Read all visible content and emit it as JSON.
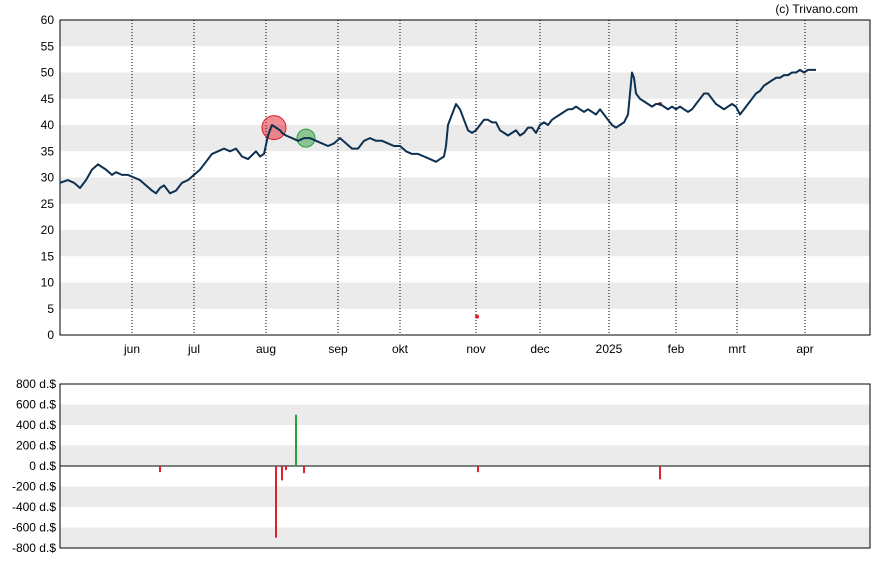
{
  "copyright": "(c) Trivano.com",
  "colors": {
    "price_line": "#0d3050",
    "buy": "#2e9e3e",
    "sell": "#e0202c",
    "band": "#ebebeb",
    "axis": "#000000"
  },
  "chart_data": [
    {
      "type": "line",
      "ylim": [
        0,
        60
      ],
      "yticks": [
        "0",
        "5",
        "10",
        "15",
        "20",
        "25",
        "30",
        "35",
        "40",
        "45",
        "50",
        "55",
        "60"
      ],
      "xticks": [
        "jun",
        "jul",
        "aug",
        "sep",
        "okt",
        "nov",
        "dec",
        "2025",
        "feb",
        "mrt",
        "apr"
      ],
      "grid": "horizontal bands, vertical dotted month lines",
      "series": [
        {
          "values": [
            [
              0,
              29
            ],
            [
              8,
              29.5
            ],
            [
              14,
              29
            ],
            [
              20,
              28
            ],
            [
              26,
              29.5
            ],
            [
              32,
              31.5
            ],
            [
              38,
              32.5
            ],
            [
              46,
              31.5
            ],
            [
              52,
              30.5
            ],
            [
              56,
              31
            ],
            [
              62,
              30.5
            ],
            [
              68,
              30.5
            ],
            [
              74,
              30
            ],
            [
              80,
              29.5
            ],
            [
              86,
              28.5
            ],
            [
              92,
              27.5
            ],
            [
              96,
              27
            ],
            [
              100,
              28
            ],
            [
              104,
              28.5
            ],
            [
              110,
              27
            ],
            [
              116,
              27.5
            ],
            [
              122,
              29
            ],
            [
              128,
              29.5
            ],
            [
              134,
              30.5
            ],
            [
              140,
              31.5
            ],
            [
              146,
              33
            ],
            [
              152,
              34.5
            ],
            [
              158,
              35
            ],
            [
              164,
              35.5
            ],
            [
              170,
              35
            ],
            [
              176,
              35.5
            ],
            [
              182,
              34
            ],
            [
              188,
              33.5
            ],
            [
              196,
              35
            ],
            [
              200,
              34
            ],
            [
              204,
              34.5
            ],
            [
              208,
              38
            ],
            [
              212,
              40
            ],
            [
              216,
              39.5
            ],
            [
              220,
              39
            ],
            [
              222,
              38.5
            ],
            [
              226,
              38
            ],
            [
              232,
              37.5
            ],
            [
              238,
              37
            ],
            [
              244,
              37.5
            ],
            [
              250,
              37.5
            ],
            [
              256,
              37
            ],
            [
              262,
              36.5
            ],
            [
              268,
              36
            ],
            [
              274,
              36.5
            ],
            [
              280,
              37.5
            ],
            [
              286,
              36.5
            ],
            [
              292,
              35.5
            ],
            [
              298,
              35.5
            ],
            [
              304,
              37
            ],
            [
              310,
              37.5
            ],
            [
              316,
              37
            ],
            [
              322,
              37
            ],
            [
              328,
              36.5
            ],
            [
              334,
              36
            ],
            [
              340,
              36
            ],
            [
              346,
              35
            ],
            [
              352,
              34.5
            ],
            [
              358,
              34.5
            ],
            [
              364,
              34
            ],
            [
              370,
              33.5
            ],
            [
              376,
              33
            ],
            [
              380,
              33.5
            ],
            [
              384,
              34
            ],
            [
              386,
              36
            ],
            [
              388,
              40
            ],
            [
              392,
              42
            ],
            [
              396,
              44
            ],
            [
              400,
              43
            ],
            [
              404,
              41
            ],
            [
              408,
              39
            ],
            [
              412,
              38.5
            ],
            [
              416,
              39
            ],
            [
              420,
              40
            ],
            [
              424,
              41
            ],
            [
              428,
              41
            ],
            [
              432,
              40.5
            ],
            [
              436,
              40.5
            ],
            [
              440,
              39
            ],
            [
              444,
              38.5
            ],
            [
              448,
              38
            ],
            [
              452,
              38.5
            ],
            [
              456,
              39
            ],
            [
              460,
              38
            ],
            [
              464,
              38.5
            ],
            [
              468,
              39.5
            ],
            [
              472,
              39.5
            ],
            [
              476,
              38.5
            ],
            [
              480,
              40
            ],
            [
              484,
              40.5
            ],
            [
              488,
              40
            ],
            [
              492,
              41
            ],
            [
              496,
              41.5
            ],
            [
              500,
              42
            ],
            [
              504,
              42.5
            ],
            [
              508,
              43
            ],
            [
              512,
              43
            ],
            [
              516,
              43.5
            ],
            [
              520,
              43
            ],
            [
              524,
              42.5
            ],
            [
              528,
              43
            ],
            [
              532,
              42.5
            ],
            [
              536,
              42
            ],
            [
              540,
              43
            ],
            [
              544,
              42
            ],
            [
              548,
              41
            ],
            [
              552,
              40
            ],
            [
              556,
              39.5
            ],
            [
              560,
              40
            ],
            [
              564,
              40.5
            ],
            [
              568,
              42
            ],
            [
              570,
              46
            ],
            [
              572,
              50
            ],
            [
              574,
              49
            ],
            [
              576,
              46
            ],
            [
              580,
              45
            ],
            [
              584,
              44.5
            ],
            [
              588,
              44
            ],
            [
              592,
              43.5
            ],
            [
              596,
              44
            ],
            [
              600,
              44
            ],
            [
              604,
              43.5
            ],
            [
              608,
              43
            ],
            [
              612,
              43.5
            ],
            [
              616,
              43
            ],
            [
              620,
              43.5
            ],
            [
              624,
              43
            ],
            [
              628,
              42.5
            ],
            [
              632,
              43
            ],
            [
              636,
              44
            ],
            [
              640,
              45
            ],
            [
              644,
              46
            ],
            [
              648,
              46
            ],
            [
              652,
              45
            ],
            [
              656,
              44
            ],
            [
              660,
              43.5
            ],
            [
              664,
              43
            ],
            [
              668,
              43.5
            ],
            [
              672,
              44
            ],
            [
              676,
              43.5
            ],
            [
              680,
              42
            ],
            [
              684,
              43
            ],
            [
              688,
              44
            ],
            [
              692,
              45
            ],
            [
              696,
              46
            ],
            [
              700,
              46.5
            ],
            [
              704,
              47.5
            ],
            [
              708,
              48
            ],
            [
              712,
              48.5
            ],
            [
              716,
              49
            ],
            [
              720,
              49
            ],
            [
              724,
              49.5
            ],
            [
              728,
              49.5
            ],
            [
              732,
              50
            ],
            [
              736,
              50
            ],
            [
              740,
              50.5
            ],
            [
              744,
              50
            ],
            [
              748,
              50.5
            ],
            [
              752,
              50.5
            ],
            [
              756,
              50.5
            ]
          ]
        }
      ],
      "markers": [
        {
          "kind": "sell",
          "x": 214,
          "y": 39.5,
          "size": "large"
        },
        {
          "kind": "buy",
          "x": 246,
          "y": 37.5,
          "size": "medium"
        },
        {
          "kind": "sell",
          "x": 417,
          "y": 3.5,
          "size": "tiny"
        },
        {
          "kind": "sell",
          "x": 600,
          "y": 44,
          "size": "tiny"
        }
      ]
    },
    {
      "type": "bar",
      "ylim": [
        -800,
        800
      ],
      "yticks": [
        "800 d.$",
        "600 d.$",
        "400 d.$",
        "200 d.$",
        "0 d.$",
        "-200 d.$",
        "-400 d.$",
        "-600 d.$",
        "-800 d.$"
      ],
      "bars": [
        {
          "x": 100,
          "value": -60,
          "kind": "sell"
        },
        {
          "x": 216,
          "value": -700,
          "kind": "sell"
        },
        {
          "x": 222,
          "value": -140,
          "kind": "sell"
        },
        {
          "x": 226,
          "value": -40,
          "kind": "sell"
        },
        {
          "x": 236,
          "value": 500,
          "kind": "buy"
        },
        {
          "x": 244,
          "value": -70,
          "kind": "sell"
        },
        {
          "x": 418,
          "value": -60,
          "kind": "sell"
        },
        {
          "x": 600,
          "value": -130,
          "kind": "sell"
        }
      ]
    }
  ]
}
